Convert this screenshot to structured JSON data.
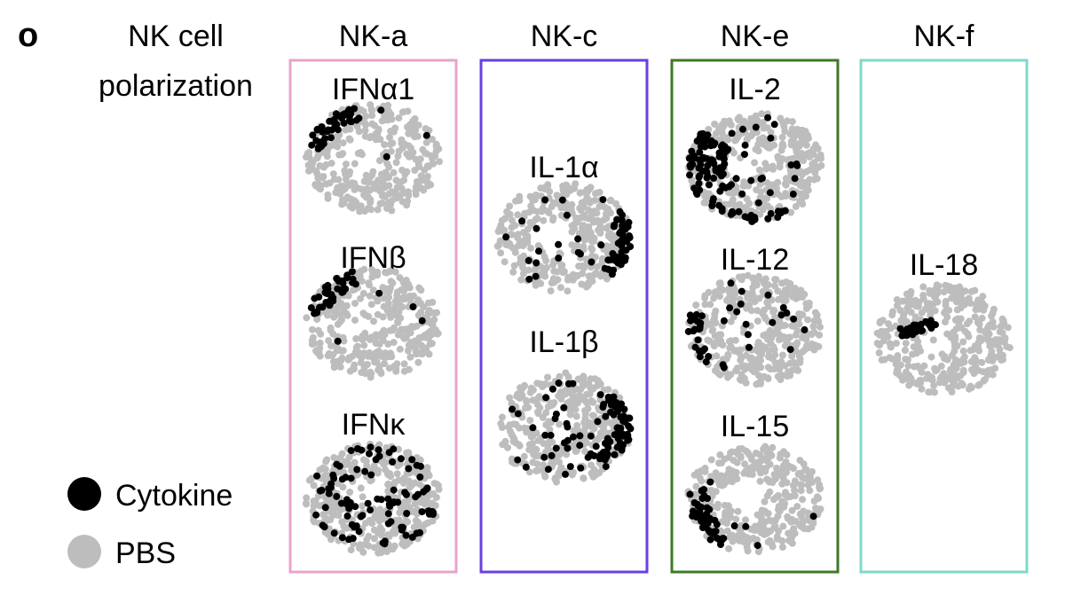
{
  "panel_label": "o",
  "row_label": [
    "NK cell",
    "polarization"
  ],
  "legend": {
    "cytokine": "Cytokine",
    "pbs": "PBS"
  },
  "groups": [
    {
      "title": "NK-a",
      "color": "#e8a3cc",
      "plots": [
        "IFNα1",
        "IFNβ",
        "IFNκ"
      ]
    },
    {
      "title": "NK-c",
      "color": "#6a3fe0",
      "plots": [
        "IL-1α",
        "IL-1β"
      ]
    },
    {
      "title": "NK-e",
      "color": "#3d7a26",
      "plots": [
        "IL-2",
        "IL-12",
        "IL-15"
      ]
    },
    {
      "title": "NK-f",
      "color": "#7fd8cc",
      "plots": [
        "IL-18"
      ]
    }
  ]
}
